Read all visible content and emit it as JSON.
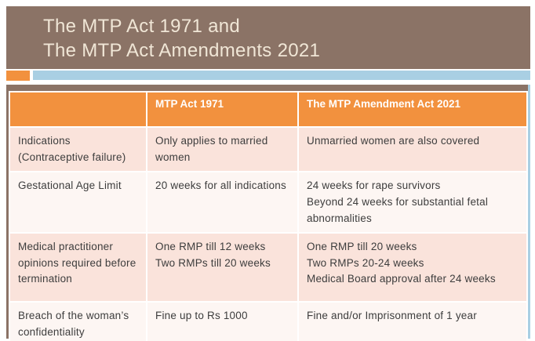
{
  "slide": {
    "title": {
      "line1": "The MTP Act 1971 and",
      "line2": "The MTP Act Amendments 2021"
    }
  },
  "colors": {
    "title_background": "#8B7366",
    "title_text": "#F0E6D6",
    "accent_orange": "#F2913E",
    "accent_blue": "#A9CFE3",
    "header_fill": "#F2913E",
    "header_text": "#FFFFFF",
    "row_pink": "#FAE3DB",
    "row_light": "#FDF6F3",
    "body_text": "#3D3D3D"
  },
  "table": {
    "headers": [
      "",
      "MTP Act 1971",
      "The MTP Amendment Act 2021"
    ],
    "rows": [
      {
        "label": [
          "Indications",
          "(Contraceptive failure)"
        ],
        "act1971": [
          "Only applies to married women"
        ],
        "act2021": [
          "Unmarried women are also covered"
        ]
      },
      {
        "label": [
          "Gestational Age Limit"
        ],
        "act1971": [
          "20 weeks for all indications"
        ],
        "act2021": [
          "24 weeks for rape survivors",
          "Beyond 24 weeks for substantial fetal abnormalities"
        ]
      },
      {
        "label": [
          "Medical practitioner opinions required before termination"
        ],
        "act1971": [
          "One RMP till 12 weeks",
          "Two RMPs till 20 weeks"
        ],
        "act2021": [
          "One RMP till 20 weeks",
          "Two RMPs 20-24 weeks",
          "Medical Board approval after 24 weeks"
        ]
      },
      {
        "label": [
          "Breach of the woman’s confidentiality"
        ],
        "act1971": [
          "Fine up to Rs 1000"
        ],
        "act2021": [
          "Fine and/or Imprisonment of 1 year"
        ]
      }
    ]
  }
}
